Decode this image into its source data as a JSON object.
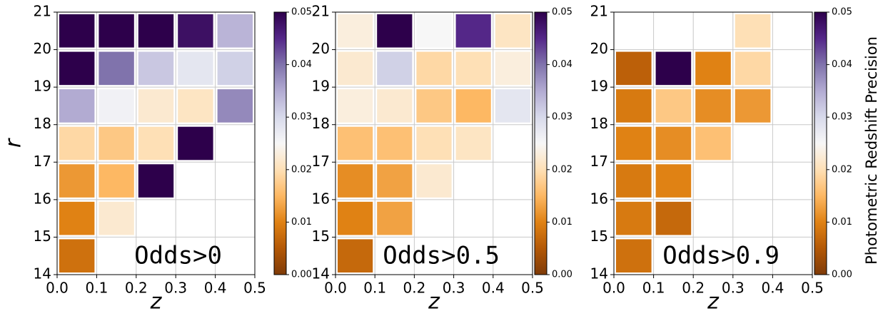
{
  "chart_data": [
    {
      "type": "heatmap",
      "ylabel": "r",
      "xlabel": "z",
      "annotation": "Odds>0",
      "colormap": "PuOr",
      "grid": true,
      "x_edges": [
        0,
        0.1,
        0.2,
        0.3,
        0.4,
        0.5
      ],
      "y_edges": [
        14,
        15,
        16,
        17,
        18,
        19,
        20,
        21
      ],
      "values": [
        [
          0.008,
          null,
          null,
          null,
          null
        ],
        [
          0.01,
          0.022,
          null,
          null,
          null
        ],
        [
          0.012,
          0.015,
          0.05,
          null,
          null
        ],
        [
          0.019,
          0.017,
          0.02,
          0.05,
          null
        ],
        [
          0.035,
          0.026,
          0.022,
          0.021,
          0.038
        ],
        [
          0.05,
          0.04,
          0.032,
          0.028,
          0.031
        ],
        [
          0.05,
          0.05,
          0.05,
          0.048,
          0.034
        ]
      ],
      "xlim": [
        0,
        0.5
      ],
      "ylim": [
        14,
        21
      ],
      "xticks": [
        {
          "value": 0,
          "label": "0.0"
        },
        0.1,
        0.2,
        0.3,
        0.4,
        0.5
      ],
      "yticks": [
        14,
        15,
        16,
        17,
        18,
        19,
        20,
        21
      ],
      "clim": [
        0,
        0.05
      ],
      "cticks": [
        {
          "value": 0,
          "label": "0.00"
        },
        0.01,
        0.02,
        0.03,
        0.04,
        0.05
      ]
    },
    {
      "type": "heatmap",
      "xlabel": "z",
      "annotation": "Odds>0.5",
      "colormap": "PuOr",
      "grid": true,
      "x_edges": [
        0,
        0.1,
        0.2,
        0.3,
        0.4,
        0.5
      ],
      "y_edges": [
        14,
        15,
        16,
        17,
        18,
        19,
        20,
        21
      ],
      "values": [
        [
          0.007,
          null,
          null,
          null,
          null
        ],
        [
          0.01,
          0.013,
          null,
          null,
          null
        ],
        [
          0.011,
          0.013,
          0.022,
          null,
          null
        ],
        [
          0.016,
          0.016,
          0.02,
          0.021,
          null
        ],
        [
          0.023,
          0.022,
          0.017,
          0.015,
          0.028
        ],
        [
          0.022,
          0.031,
          0.019,
          0.02,
          0.023
        ],
        [
          0.023,
          0.05,
          0.025,
          0.045,
          0.021
        ]
      ],
      "xlim": [
        0,
        0.5
      ],
      "ylim": [
        14,
        21
      ],
      "xticks": [
        {
          "value": 0,
          "label": "0.0"
        },
        0.1,
        0.2,
        0.3,
        0.4,
        0.5
      ],
      "yticks": [
        14,
        15,
        16,
        17,
        18,
        19,
        20,
        21
      ],
      "clim": [
        0,
        0.05
      ],
      "cticks": [
        {
          "value": 0,
          "label": "0.00"
        },
        0.01,
        0.02,
        0.03,
        0.04,
        0.05
      ]
    },
    {
      "type": "heatmap",
      "xlabel": "z",
      "annotation": "Odds>0.9",
      "colormap": "PuOr",
      "grid": true,
      "colorbar_label": "Photometric Redshift Precision",
      "x_edges": [
        0,
        0.1,
        0.2,
        0.3,
        0.4,
        0.5
      ],
      "y_edges": [
        14,
        15,
        16,
        17,
        18,
        19,
        20,
        21
      ],
      "values": [
        [
          0.008,
          null,
          null,
          null,
          null
        ],
        [
          0.009,
          0.007,
          null,
          null,
          null
        ],
        [
          0.009,
          0.01,
          null,
          null,
          null
        ],
        [
          0.01,
          0.011,
          0.016,
          null,
          null
        ],
        [
          0.009,
          0.017,
          0.011,
          0.012,
          null
        ],
        [
          0.006,
          0.05,
          0.01,
          0.019,
          null
        ],
        [
          null,
          null,
          null,
          0.02,
          null
        ]
      ],
      "xlim": [
        0,
        0.5
      ],
      "ylim": [
        14,
        21
      ],
      "xticks": [
        {
          "value": 0,
          "label": "0.0"
        },
        0.1,
        0.2,
        0.3,
        0.4,
        0.5
      ],
      "yticks": [
        14,
        15,
        16,
        17,
        18,
        19,
        20,
        21
      ],
      "clim": [
        0,
        0.05
      ],
      "cticks": [
        {
          "value": 0,
          "label": "0.00"
        },
        0.01,
        0.02,
        0.03,
        0.04,
        0.05
      ]
    }
  ]
}
